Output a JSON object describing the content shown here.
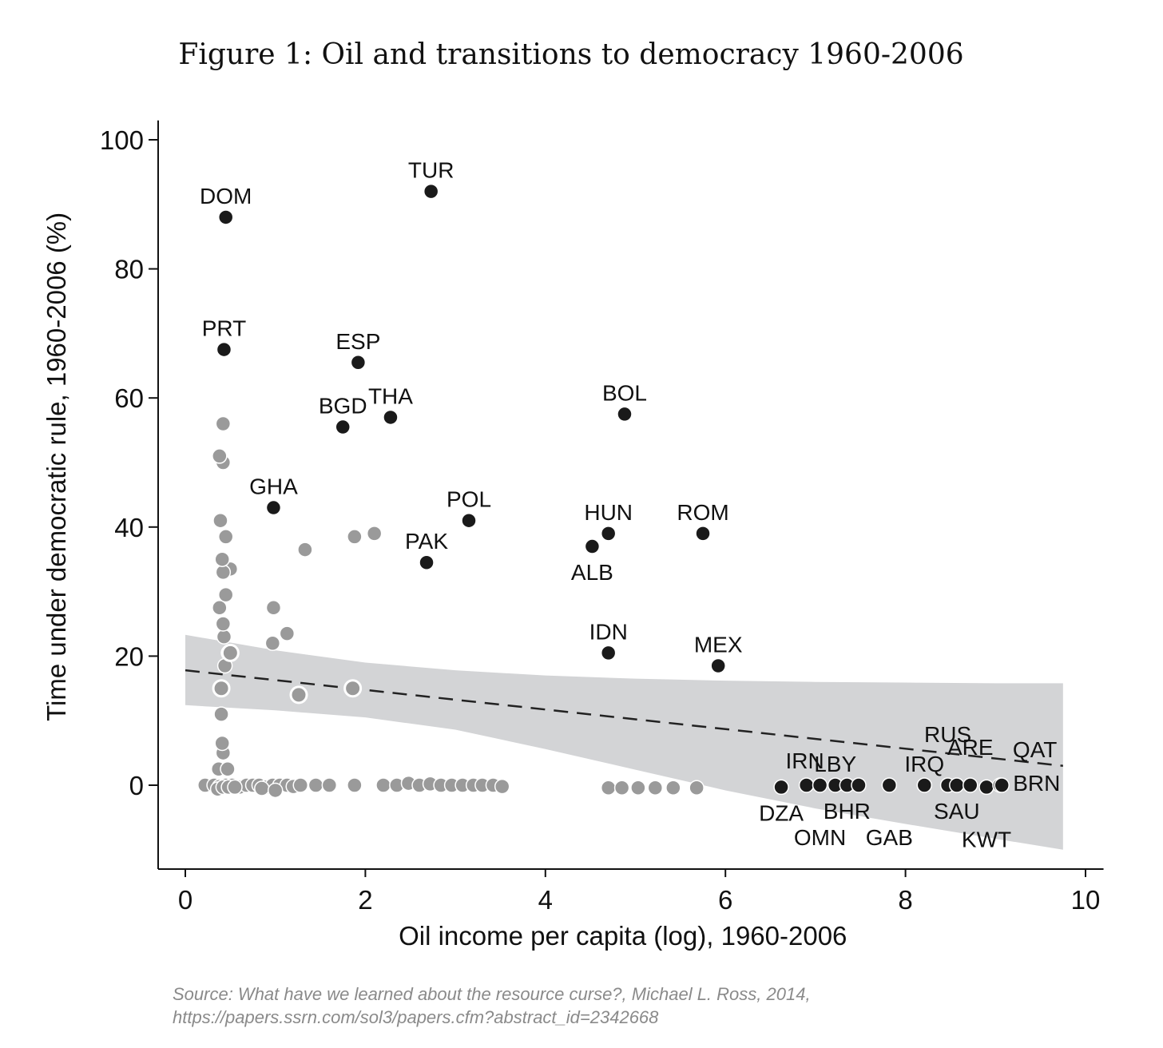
{
  "figure": {
    "title": "Figure 1: Oil and transitions to democracy 1960-2006",
    "source_line1": "Source: What have we learned about the resource curse?, Michael L. Ross, 2014,",
    "source_line2": "https://papers.ssrn.com/sol3/papers.cfm?abstract_id=2342668"
  },
  "colors": {
    "highlight_point": "#1a1a1a",
    "other_point": "#9a9a9a",
    "confidence_band": "#d3d4d6",
    "axis": "#111111"
  },
  "chart_data": {
    "type": "scatter",
    "xlabel": "Oil income per capita (log), 1960-2006",
    "ylabel": "Time under democratic rule, 1960-2006 (%)",
    "xlim": [
      -0.3,
      10.2
    ],
    "ylim": [
      -13,
      103
    ],
    "xticks": [
      0,
      2,
      4,
      6,
      8,
      10
    ],
    "yticks": [
      0,
      20,
      40,
      60,
      80,
      100
    ],
    "grid": false,
    "fit_line": {
      "style": "dashed",
      "x": [
        0,
        9.75
      ],
      "y": [
        17.8,
        3
      ]
    },
    "confidence_band": {
      "x": [
        0,
        1,
        2,
        3,
        4,
        5,
        6,
        7,
        8,
        9,
        9.75
      ],
      "upper": [
        23.3,
        20.9,
        19,
        17.8,
        17,
        16.5,
        16.2,
        16,
        15.9,
        15.8,
        15.8
      ],
      "lower": [
        12.4,
        11.6,
        10.5,
        8.6,
        5.6,
        2.4,
        -0.8,
        -3.6,
        -6,
        -8.3,
        -10
      ]
    },
    "highlighted": [
      {
        "label": "DOM",
        "x": 0.45,
        "y": 88,
        "label_pos": "above"
      },
      {
        "label": "TUR",
        "x": 2.73,
        "y": 92,
        "label_pos": "above"
      },
      {
        "label": "PRT",
        "x": 0.43,
        "y": 67.5,
        "label_pos": "above"
      },
      {
        "label": "ESP",
        "x": 1.92,
        "y": 65.5,
        "label_pos": "above"
      },
      {
        "label": "BGD",
        "x": 1.75,
        "y": 55.5,
        "label_pos": "above"
      },
      {
        "label": "THA",
        "x": 2.28,
        "y": 57,
        "label_pos": "above"
      },
      {
        "label": "BOL",
        "x": 4.88,
        "y": 57.5,
        "label_pos": "above"
      },
      {
        "label": "GHA",
        "x": 0.98,
        "y": 43,
        "label_pos": "above"
      },
      {
        "label": "POL",
        "x": 3.15,
        "y": 41,
        "label_pos": "above"
      },
      {
        "label": "HUN",
        "x": 4.7,
        "y": 39,
        "label_pos": "above"
      },
      {
        "label": "ROM",
        "x": 5.75,
        "y": 39,
        "label_pos": "above"
      },
      {
        "label": "PAK",
        "x": 2.68,
        "y": 34.5,
        "label_pos": "above"
      },
      {
        "label": "ALB",
        "x": 4.52,
        "y": 37,
        "label_pos": "below"
      },
      {
        "label": "IDN",
        "x": 4.7,
        "y": 20.5,
        "label_pos": "above"
      },
      {
        "label": "MEX",
        "x": 5.92,
        "y": 18.5,
        "label_pos": "above"
      },
      {
        "label": "DZA",
        "x": 6.62,
        "y": -0.3,
        "label_pos": "below"
      },
      {
        "label": "IRN",
        "x": 6.9,
        "y": 0,
        "label_pos": "above-left"
      },
      {
        "label": "OMN",
        "x": 7.05,
        "y": 0,
        "label_pos": "below-far"
      },
      {
        "label": "LBY",
        "x": 7.22,
        "y": 0,
        "label_pos": "above"
      },
      {
        "label": "BHR",
        "x": 7.35,
        "y": 0,
        "label_pos": "below"
      },
      {
        "label": "",
        "x": 7.48,
        "y": 0,
        "label_pos": "none"
      },
      {
        "label": "GAB",
        "x": 7.82,
        "y": 0,
        "label_pos": "below-far"
      },
      {
        "label": "IRQ",
        "x": 8.21,
        "y": 0,
        "label_pos": "above"
      },
      {
        "label": "RUS",
        "x": 8.47,
        "y": 0,
        "label_pos": "above-far"
      },
      {
        "label": "SAU",
        "x": 8.57,
        "y": 0,
        "label_pos": "below"
      },
      {
        "label": "ARE",
        "x": 8.72,
        "y": 0,
        "label_pos": "above"
      },
      {
        "label": "KWT",
        "x": 8.9,
        "y": -0.3,
        "label_pos": "below-far"
      },
      {
        "label": "QAT",
        "x": 9.05,
        "y": 0,
        "label_pos": "above-right"
      },
      {
        "label": "BRN",
        "x": 9.07,
        "y": 0,
        "label_pos": "right"
      }
    ],
    "others": {
      "x": [
        0.22,
        0.32,
        0.38,
        0.45,
        0.52,
        0.6,
        0.68,
        0.75,
        0.82,
        0.9,
        0.97,
        1.05,
        1.13,
        1.2,
        1.28,
        1.45,
        1.6,
        1.88,
        2.2,
        2.35,
        2.48,
        2.6,
        2.72,
        2.84,
        2.96,
        3.08,
        3.2,
        3.3,
        3.42,
        3.52,
        4.7,
        4.85,
        5.03,
        5.22,
        5.42,
        5.68,
        0.36,
        0.42,
        0.48,
        0.55,
        0.85,
        1.0,
        0.37,
        0.42,
        0.47,
        0.41,
        0.4,
        0.44,
        0.48,
        0.43,
        0.42,
        0.38,
        0.45,
        0.5,
        0.42,
        0.41,
        0.45,
        0.39,
        0.42,
        0.38,
        0.42,
        0.48,
        1.33,
        1.88,
        2.1,
        0.98,
        1.13,
        0.97,
        1.26,
        1.86
      ],
      "y": [
        0,
        0,
        -0.2,
        0,
        0,
        -0.3,
        0,
        0,
        0,
        -0.3,
        0,
        0,
        0,
        -0.2,
        0,
        0,
        0,
        0,
        0,
        0,
        0.3,
        0,
        0.2,
        0,
        0,
        0,
        0,
        0,
        0,
        -0.2,
        -0.4,
        -0.4,
        -0.4,
        -0.4,
        -0.4,
        -0.4,
        -0.6,
        -0.3,
        -0.3,
        -0.3,
        -0.5,
        -0.8,
        2.5,
        5,
        2.5,
        6.5,
        11,
        18.5,
        20.5,
        23,
        25,
        27.5,
        29.5,
        33.5,
        33,
        35,
        38.5,
        41,
        50,
        51,
        56,
        20.5,
        36.5,
        38.5,
        39,
        27.5,
        23.5,
        22,
        14,
        15
      ]
    },
    "hollow": {
      "x": [
        0.4,
        0.5,
        1.26,
        1.86
      ],
      "y": [
        15,
        20.5,
        14,
        15
      ]
    }
  }
}
